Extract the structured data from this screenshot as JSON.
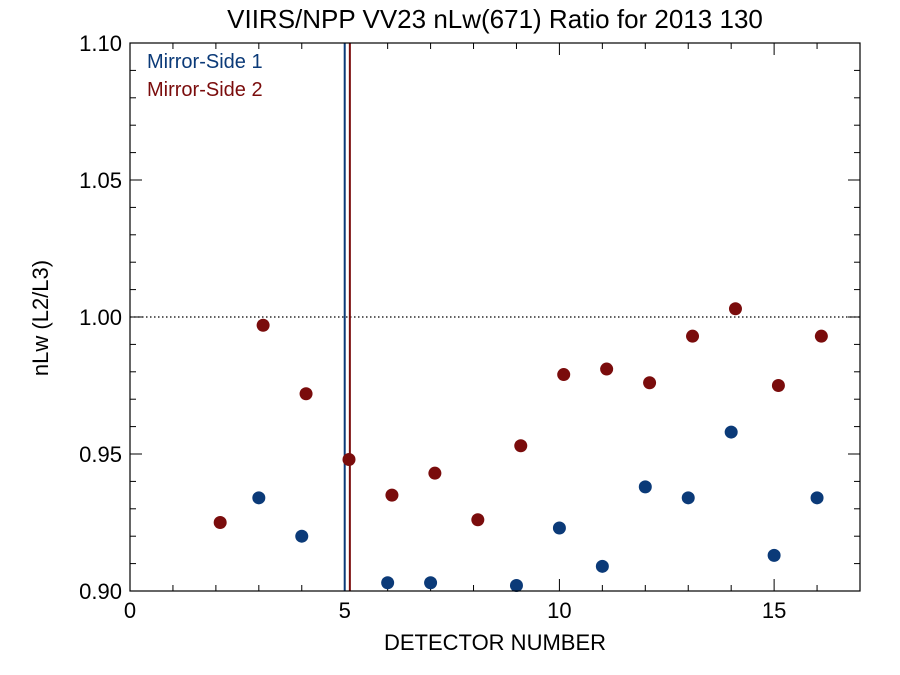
{
  "chart_data": {
    "type": "scatter",
    "title": "VIIRS/NPP VV23 nLw(671) Ratio for 2013 130",
    "xlabel": "DETECTOR NUMBER",
    "ylabel": "nLw (L2/L3)",
    "xlim": [
      0,
      17
    ],
    "ylim": [
      0.9,
      1.1
    ],
    "x_ticks": [
      0,
      5,
      10,
      15
    ],
    "x_tick_labels": [
      "0",
      "5",
      "10",
      "15"
    ],
    "y_ticks": [
      0.9,
      0.95,
      1.0,
      1.05,
      1.1
    ],
    "y_tick_labels": [
      "0.90",
      "0.95",
      "1.00",
      "1.05",
      "1.10"
    ],
    "reference_line": {
      "y": 1.0,
      "style": "dotted"
    },
    "legend_position": "top-left",
    "series": [
      {
        "name": "Mirror-Side 1",
        "color": "#0b3a78",
        "vline_x": 5.0,
        "points": [
          {
            "x": 3,
            "y": 0.934
          },
          {
            "x": 4,
            "y": 0.92
          },
          {
            "x": 6,
            "y": 0.903
          },
          {
            "x": 7,
            "y": 0.903
          },
          {
            "x": 9,
            "y": 0.902
          },
          {
            "x": 10,
            "y": 0.923
          },
          {
            "x": 11,
            "y": 0.909
          },
          {
            "x": 12,
            "y": 0.938
          },
          {
            "x": 13,
            "y": 0.934
          },
          {
            "x": 14,
            "y": 0.958
          },
          {
            "x": 15,
            "y": 0.913
          },
          {
            "x": 16,
            "y": 0.934
          }
        ]
      },
      {
        "name": "Mirror-Side 2",
        "color": "#7a0c0c",
        "vline_x": 5.12,
        "points": [
          {
            "x": 2.1,
            "y": 0.925
          },
          {
            "x": 3.1,
            "y": 0.997
          },
          {
            "x": 4.1,
            "y": 0.972
          },
          {
            "x": 5.1,
            "y": 0.948
          },
          {
            "x": 6.1,
            "y": 0.935
          },
          {
            "x": 7.1,
            "y": 0.943
          },
          {
            "x": 8.1,
            "y": 0.926
          },
          {
            "x": 9.1,
            "y": 0.953
          },
          {
            "x": 10.1,
            "y": 0.979
          },
          {
            "x": 11.1,
            "y": 0.981
          },
          {
            "x": 12.1,
            "y": 0.976
          },
          {
            "x": 13.1,
            "y": 0.993
          },
          {
            "x": 14.1,
            "y": 1.003
          },
          {
            "x": 15.1,
            "y": 0.975
          },
          {
            "x": 16.1,
            "y": 0.993
          }
        ]
      }
    ]
  }
}
